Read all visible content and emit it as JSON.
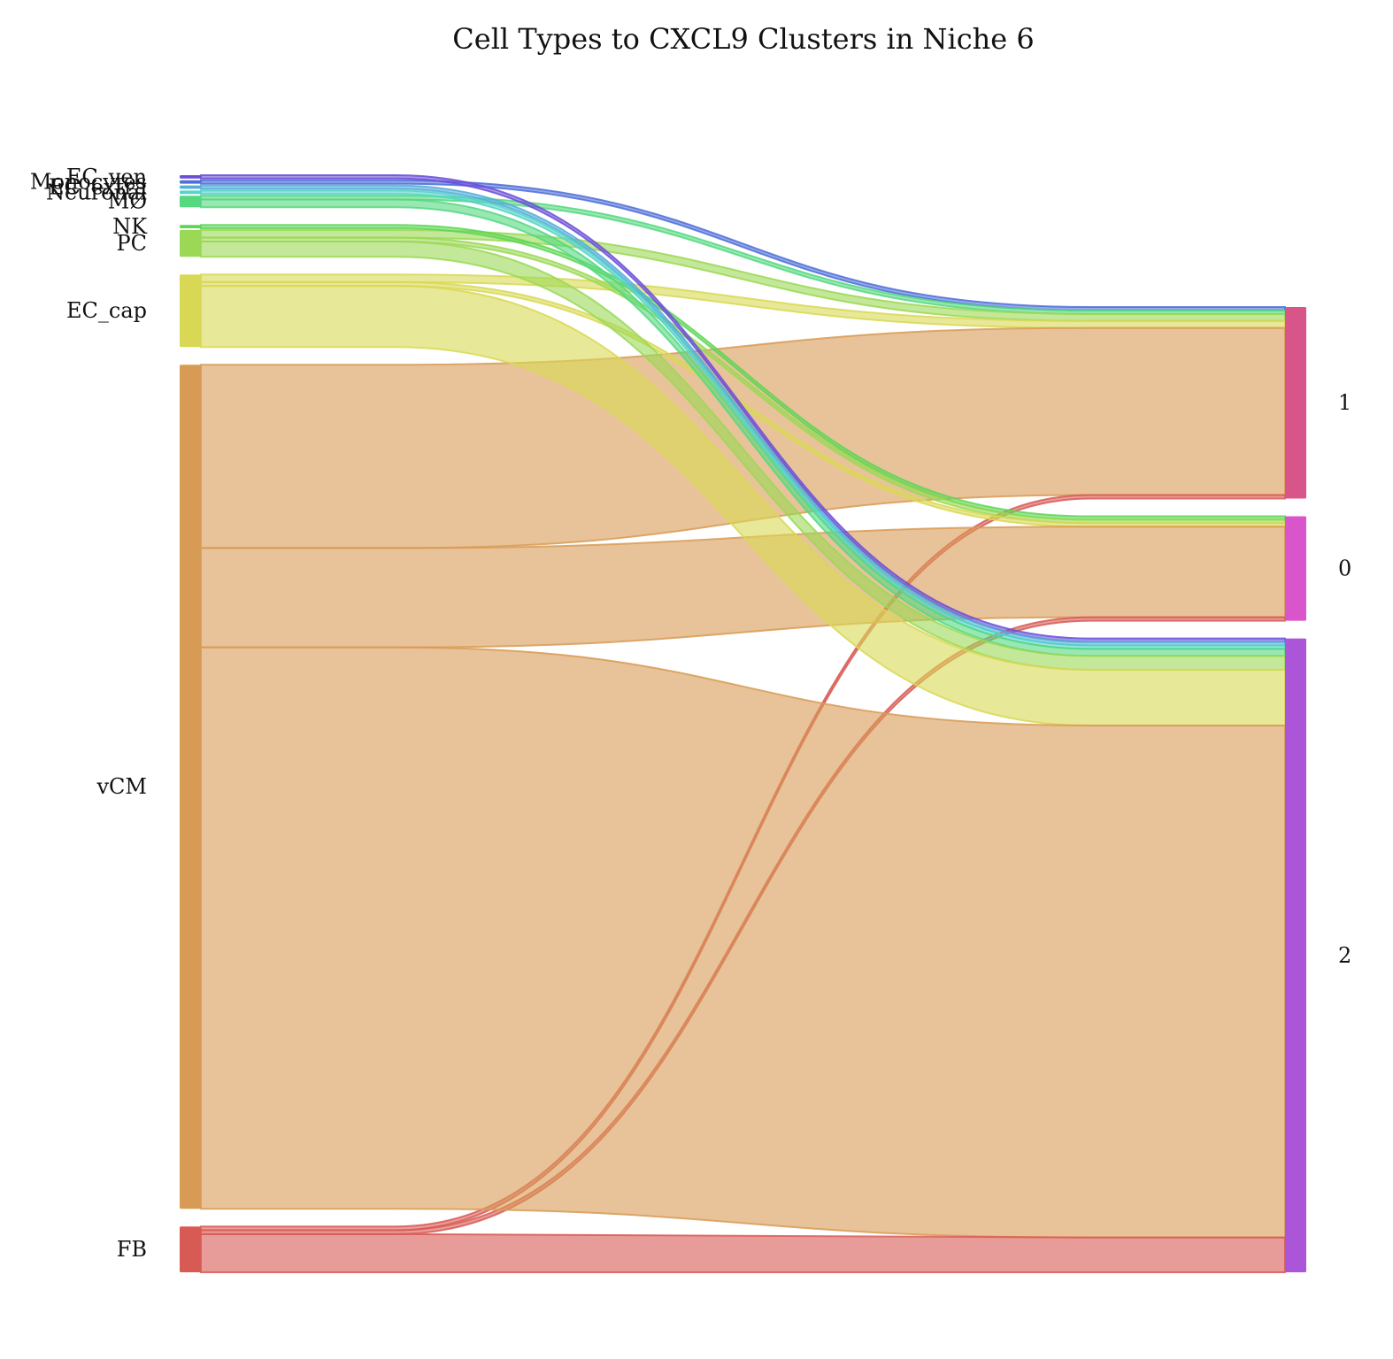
{
  "chart_data": {
    "type": "sankey",
    "title": "Cell Types to CXCL9 Clusters in Niche 6",
    "sources": [
      {
        "name": "EC_ven",
        "color": "#6b4fd8"
      },
      {
        "name": "Monocytes",
        "color": "#4f6fd8"
      },
      {
        "name": "EC_extra",
        "color": "#55aed8"
      },
      {
        "name": "Neuronal",
        "color": "#55d4c8"
      },
      {
        "name": "MØ",
        "color": "#55d880"
      },
      {
        "name": "NK",
        "color": "#5ed655"
      },
      {
        "name": "PC",
        "color": "#9bd855"
      },
      {
        "name": "EC_cap",
        "color": "#d8d855"
      },
      {
        "name": "vCM",
        "color": "#d89b55"
      },
      {
        "name": "FB",
        "color": "#d85a55"
      }
    ],
    "targets": [
      {
        "name": "1",
        "color": "#d8558a"
      },
      {
        "name": "0",
        "color": "#d855cc"
      },
      {
        "name": "2",
        "color": "#ab55d8"
      }
    ],
    "flows": [
      {
        "source": "Monocytes",
        "target": "1",
        "value": 1
      },
      {
        "source": "MØ",
        "target": "1",
        "value": 1
      },
      {
        "source": "PC",
        "target": "1",
        "value": 2
      },
      {
        "source": "EC_cap",
        "target": "1",
        "value": 2
      },
      {
        "source": "vCM",
        "target": "1",
        "value": 48
      },
      {
        "source": "FB",
        "target": "1",
        "value": 1
      },
      {
        "source": "NK",
        "target": "0",
        "value": 1
      },
      {
        "source": "PC",
        "target": "0",
        "value": 1
      },
      {
        "source": "EC_cap",
        "target": "0",
        "value": 1
      },
      {
        "source": "vCM",
        "target": "0",
        "value": 26
      },
      {
        "source": "FB",
        "target": "0",
        "value": 1
      },
      {
        "source": "EC_ven",
        "target": "2",
        "value": 1
      },
      {
        "source": "EC_extra",
        "target": "2",
        "value": 1
      },
      {
        "source": "Neuronal",
        "target": "2",
        "value": 1
      },
      {
        "source": "MØ",
        "target": "2",
        "value": 2
      },
      {
        "source": "PC",
        "target": "2",
        "value": 4
      },
      {
        "source": "EC_cap",
        "target": "2",
        "value": 16
      },
      {
        "source": "vCM",
        "target": "2",
        "value": 147
      },
      {
        "source": "FB",
        "target": "2",
        "value": 10
      }
    ]
  }
}
